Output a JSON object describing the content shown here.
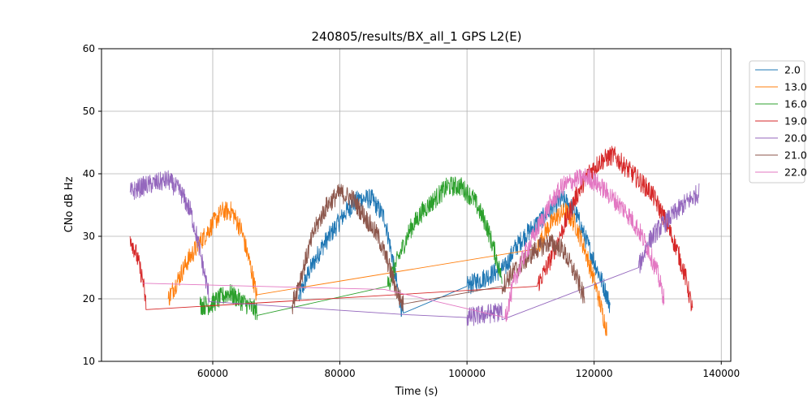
{
  "chart_data": {
    "type": "line",
    "title": "240805/results/BX_all_1 GPS L2(E)",
    "xlabel": "Time (s)",
    "ylabel": "CNo dB Hz",
    "xlim": [
      42500,
      141500
    ],
    "ylim": [
      10,
      60
    ],
    "xticks": [
      60000,
      80000,
      100000,
      120000,
      140000
    ],
    "yticks": [
      10,
      20,
      30,
      40,
      50,
      60
    ],
    "grid": true,
    "legend_position": "outside-top-right",
    "series": [
      {
        "name": "2.0",
        "color": "#1f77b4",
        "x": [
          73500,
          75000,
          77000,
          79000,
          81000,
          83000,
          85000,
          87000,
          88000,
          89000,
          90000,
          100000,
          106000,
          107500,
          109000,
          111000,
          113000,
          115000,
          117000,
          118500,
          120000,
          121500,
          122500
        ],
        "y": [
          20,
          24,
          28,
          31,
          34,
          36,
          36,
          33,
          28,
          22,
          17,
          22,
          25,
          28,
          30,
          32,
          34,
          36,
          34,
          30,
          26,
          22,
          19
        ]
      },
      {
        "name": "13.0",
        "color": "#ff7f0e",
        "x": [
          53000,
          54500,
          56000,
          58000,
          60000,
          61500,
          63000,
          64500,
          66000,
          67000,
          111000,
          112500,
          114000,
          115500,
          117000,
          118500,
          120000,
          121500,
          122000
        ],
        "y": [
          20,
          23,
          26,
          29,
          32,
          34,
          34,
          31,
          25,
          20,
          28,
          31,
          33,
          34,
          32,
          28,
          23,
          17,
          15
        ]
      },
      {
        "name": "16.0",
        "color": "#2ca02c",
        "x": [
          58000,
          59500,
          61000,
          62500,
          64000,
          65500,
          67000,
          87500,
          89000,
          91000,
          93000,
          95000,
          97000,
          99000,
          101000,
          103000,
          104500,
          105500
        ],
        "y": [
          19,
          19,
          20,
          21,
          20,
          19,
          18,
          22,
          26,
          31,
          34,
          36,
          38,
          38,
          36,
          32,
          27,
          23
        ]
      },
      {
        "name": "19.0",
        "color": "#d62728",
        "x": [
          47000,
          48000,
          49000,
          49500,
          111000,
          113000,
          115000,
          117000,
          119000,
          121000,
          123000,
          125000,
          127000,
          129000,
          131000,
          133000,
          134500,
          135500
        ],
        "y": [
          30,
          27,
          23,
          19,
          22,
          26,
          31,
          36,
          40,
          42,
          43,
          41,
          39,
          37,
          33,
          28,
          23,
          18
        ]
      },
      {
        "name": "20.0",
        "color": "#9467bd",
        "x": [
          47000,
          49000,
          51000,
          53000,
          55000,
          56500,
          57500,
          58500,
          59500,
          90000,
          100000,
          105500,
          127000,
          128500,
          130000,
          132000,
          134000,
          136500
        ],
        "y": [
          37,
          38,
          38.5,
          39,
          37,
          34,
          30,
          25,
          20,
          17.5,
          17,
          18,
          25,
          29,
          31,
          33,
          35,
          37
        ]
      },
      {
        "name": "21.0",
        "color": "#8c564b",
        "x": [
          72500,
          74000,
          76000,
          78000,
          80000,
          82000,
          84000,
          86000,
          87500,
          89000,
          90000,
          105500,
          107000,
          109000,
          111000,
          113000,
          115000,
          117000,
          118500
        ],
        "y": [
          19,
          24,
          31,
          35,
          37,
          36,
          33,
          30,
          26,
          21,
          19,
          22,
          24,
          26,
          28,
          29,
          28,
          24,
          20
        ]
      },
      {
        "name": "22.0",
        "color": "#e377c2",
        "x": [
          49000,
          67000,
          87000,
          106000,
          107500,
          109000,
          111000,
          113000,
          115000,
          117000,
          119000,
          121000,
          123000,
          125000,
          127000,
          128500,
          130000,
          131000
        ],
        "y": [
          22.5,
          22,
          21.5,
          17,
          23,
          27,
          31,
          35,
          38,
          39,
          39.5,
          38,
          36,
          34,
          31,
          28,
          24,
          20
        ]
      }
    ]
  }
}
